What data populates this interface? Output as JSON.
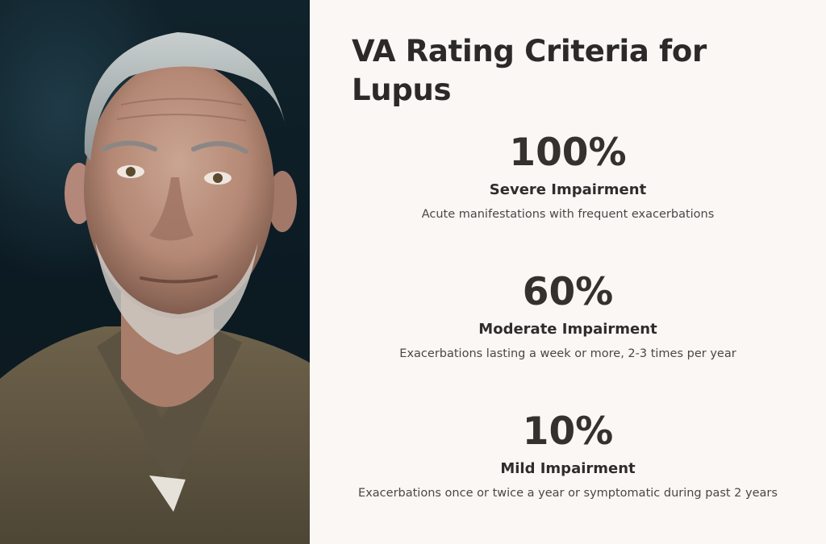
{
  "title": "VA Rating Criteria for Lupus",
  "tiers": [
    {
      "percent": "100%",
      "label": "Severe Impairment",
      "description": "Acute manifestations with frequent exacerbations"
    },
    {
      "percent": "60%",
      "label": "Moderate Impairment",
      "description": "Exacerbations lasting a week or more, 2-3 times per year"
    },
    {
      "percent": "10%",
      "label": "Mild Impairment",
      "description": "Exacerbations once or twice a year or symptomatic during past 2 years"
    }
  ],
  "colors": {
    "background": "#faf7f5",
    "text": "#2f2d2c",
    "photo_background": "#10222b"
  }
}
